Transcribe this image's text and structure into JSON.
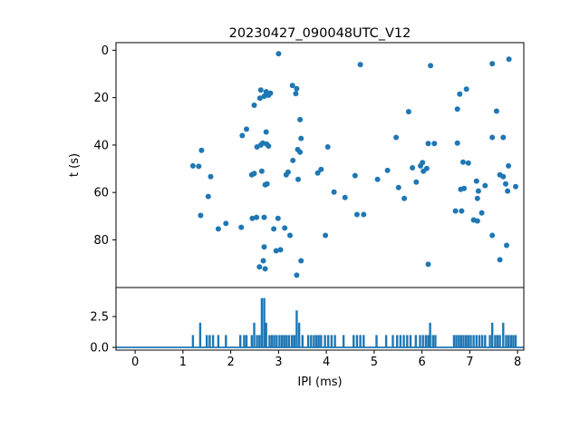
{
  "figure": {
    "title": "20230427_090048UTC_V12",
    "background": "#ffffff",
    "accent_color": "#1f77b4",
    "spine_color": "#000000"
  },
  "chart_data": [
    {
      "type": "scatter",
      "title": "20230427_090048UTC_V12",
      "xlabel": "",
      "ylabel": "t (s)",
      "xlim": [
        -0.4,
        8.13
      ],
      "ylim": [
        -3.2,
        100.1
      ],
      "y_inverted": true,
      "grid": false,
      "legend": "none",
      "yticks": [
        0,
        20,
        40,
        60,
        80
      ],
      "ytick_labels": [
        "0",
        "20",
        "40",
        "60",
        "80"
      ],
      "marker_color": "#1f77b4",
      "points": [
        [
          3.0,
          1.5
        ],
        [
          7.82,
          3.8
        ],
        [
          7.47,
          5.7
        ],
        [
          6.18,
          6.5
        ],
        [
          4.71,
          6.1
        ],
        [
          3.29,
          14.9
        ],
        [
          3.38,
          16.2
        ],
        [
          3.36,
          18.3
        ],
        [
          2.63,
          16.8
        ],
        [
          2.74,
          17.5
        ],
        [
          2.83,
          18.1
        ],
        [
          2.79,
          19.0
        ],
        [
          2.61,
          20.2
        ],
        [
          2.7,
          19.4
        ],
        [
          2.49,
          23.2
        ],
        [
          6.93,
          16.4
        ],
        [
          6.79,
          18.5
        ],
        [
          6.74,
          24.8
        ],
        [
          7.56,
          25.7
        ],
        [
          5.72,
          25.9
        ],
        [
          3.45,
          29.3
        ],
        [
          2.33,
          33.3
        ],
        [
          2.24,
          36.0
        ],
        [
          2.74,
          34.5
        ],
        [
          5.46,
          36.8
        ],
        [
          7.47,
          36.8
        ],
        [
          7.7,
          36.8
        ],
        [
          3.47,
          37.2
        ],
        [
          2.55,
          40.8
        ],
        [
          2.63,
          40.0
        ],
        [
          2.67,
          39.2
        ],
        [
          2.75,
          39.6
        ],
        [
          2.79,
          40.4
        ],
        [
          6.13,
          39.4
        ],
        [
          6.26,
          39.4
        ],
        [
          6.74,
          39.2
        ],
        [
          3.4,
          41.9
        ],
        [
          3.45,
          43.0
        ],
        [
          1.39,
          42.2
        ],
        [
          4.03,
          40.8
        ],
        [
          3.3,
          46.5
        ],
        [
          6.01,
          47.4
        ],
        [
          6.86,
          47.2
        ],
        [
          6.97,
          47.6
        ],
        [
          1.21,
          48.8
        ],
        [
          1.33,
          49.0
        ],
        [
          7.81,
          48.8
        ],
        [
          5.8,
          49.6
        ],
        [
          5.97,
          48.8
        ],
        [
          6.1,
          49.9
        ],
        [
          3.89,
          50.3
        ],
        [
          3.82,
          51.8
        ],
        [
          2.44,
          52.6
        ],
        [
          2.49,
          52.0
        ],
        [
          2.65,
          51.0
        ],
        [
          3.16,
          52.6
        ],
        [
          3.2,
          51.4
        ],
        [
          1.58,
          53.3
        ],
        [
          2.72,
          56.8
        ],
        [
          2.76,
          56.4
        ],
        [
          3.41,
          54.5
        ],
        [
          4.6,
          52.9
        ],
        [
          5.28,
          50.7
        ],
        [
          5.07,
          54.5
        ],
        [
          6.03,
          51.0
        ],
        [
          5.51,
          57.9
        ],
        [
          5.88,
          55.6
        ],
        [
          7.63,
          52.6
        ],
        [
          7.7,
          53.3
        ],
        [
          7.14,
          55.2
        ],
        [
          7.32,
          57.1
        ],
        [
          7.75,
          56.4
        ],
        [
          6.81,
          58.7
        ],
        [
          6.88,
          58.3
        ],
        [
          7.96,
          57.5
        ],
        [
          7.18,
          59.4
        ],
        [
          7.79,
          59.4
        ],
        [
          4.16,
          59.8
        ],
        [
          4.39,
          62.1
        ],
        [
          5.63,
          62.5
        ],
        [
          1.53,
          61.7
        ],
        [
          7.16,
          62.5
        ],
        [
          1.37,
          69.7
        ],
        [
          2.45,
          70.9
        ],
        [
          2.54,
          70.5
        ],
        [
          2.7,
          70.5
        ],
        [
          2.99,
          70.9
        ],
        [
          4.64,
          69.3
        ],
        [
          4.78,
          69.3
        ],
        [
          6.7,
          67.8
        ],
        [
          6.83,
          67.8
        ],
        [
          7.25,
          68.6
        ],
        [
          1.74,
          75.4
        ],
        [
          1.9,
          73.1
        ],
        [
          2.22,
          74.7
        ],
        [
          2.9,
          75.4
        ],
        [
          3.13,
          75.0
        ],
        [
          7.08,
          71.6
        ],
        [
          7.16,
          72.0
        ],
        [
          3.24,
          78.1
        ],
        [
          3.98,
          78.1
        ],
        [
          7.47,
          78.1
        ],
        [
          2.7,
          83.0
        ],
        [
          2.95,
          84.6
        ],
        [
          3.04,
          84.2
        ],
        [
          7.77,
          82.3
        ],
        [
          2.68,
          88.8
        ],
        [
          3.47,
          88.8
        ],
        [
          7.63,
          88.4
        ],
        [
          2.6,
          91.4
        ],
        [
          2.72,
          92.2
        ],
        [
          6.13,
          90.3
        ],
        [
          3.38,
          94.9
        ]
      ]
    },
    {
      "type": "bar",
      "title": "",
      "xlabel": "IPI (ms)",
      "ylabel": "",
      "xlim": [
        -0.4,
        8.13
      ],
      "ylim": [
        -0.22,
        4.85
      ],
      "grid": false,
      "legend": "none",
      "bar_color": "#1f77b4",
      "bar_width_ms": 0.045,
      "xticks": [
        0,
        1,
        2,
        3,
        4,
        5,
        6,
        7,
        8
      ],
      "xtick_labels": [
        "0",
        "1",
        "2",
        "3",
        "4",
        "5",
        "6",
        "7",
        "8"
      ],
      "yticks": [
        0.0,
        2.5
      ],
      "ytick_labels": [
        "0.0",
        "2.5"
      ],
      "bars": [
        [
          1.21,
          1
        ],
        [
          1.36,
          2
        ],
        [
          1.5,
          1
        ],
        [
          1.56,
          1
        ],
        [
          1.63,
          1
        ],
        [
          1.74,
          1
        ],
        [
          1.9,
          1
        ],
        [
          2.2,
          1
        ],
        [
          2.28,
          1
        ],
        [
          2.33,
          1
        ],
        [
          2.44,
          1
        ],
        [
          2.49,
          2
        ],
        [
          2.55,
          1
        ],
        [
          2.6,
          1
        ],
        [
          2.65,
          4
        ],
        [
          2.7,
          4
        ],
        [
          2.74,
          2
        ],
        [
          2.81,
          1
        ],
        [
          2.86,
          1
        ],
        [
          2.91,
          1
        ],
        [
          2.96,
          1
        ],
        [
          3.02,
          1
        ],
        [
          3.07,
          1
        ],
        [
          3.12,
          1
        ],
        [
          3.17,
          1
        ],
        [
          3.22,
          1
        ],
        [
          3.28,
          1
        ],
        [
          3.33,
          1
        ],
        [
          3.38,
          3
        ],
        [
          3.43,
          2
        ],
        [
          3.5,
          1
        ],
        [
          3.62,
          1
        ],
        [
          3.68,
          1
        ],
        [
          3.74,
          1
        ],
        [
          3.79,
          1
        ],
        [
          3.84,
          1
        ],
        [
          3.89,
          1
        ],
        [
          3.97,
          1
        ],
        [
          4.04,
          1
        ],
        [
          4.11,
          1
        ],
        [
          4.18,
          1
        ],
        [
          4.36,
          1
        ],
        [
          4.57,
          1
        ],
        [
          4.64,
          1
        ],
        [
          4.71,
          1
        ],
        [
          4.78,
          1
        ],
        [
          5.05,
          1
        ],
        [
          5.25,
          1
        ],
        [
          5.39,
          1
        ],
        [
          5.48,
          1
        ],
        [
          5.55,
          1
        ],
        [
          5.62,
          1
        ],
        [
          5.69,
          1
        ],
        [
          5.76,
          1
        ],
        [
          5.87,
          1
        ],
        [
          5.96,
          1
        ],
        [
          6.02,
          1
        ],
        [
          6.08,
          1
        ],
        [
          6.13,
          1
        ],
        [
          6.17,
          2
        ],
        [
          6.23,
          1
        ],
        [
          6.28,
          1
        ],
        [
          6.67,
          1
        ],
        [
          6.72,
          1
        ],
        [
          6.77,
          1
        ],
        [
          6.82,
          1
        ],
        [
          6.87,
          1
        ],
        [
          6.92,
          1
        ],
        [
          6.97,
          1
        ],
        [
          7.02,
          1
        ],
        [
          7.08,
          1
        ],
        [
          7.14,
          1
        ],
        [
          7.2,
          1
        ],
        [
          7.26,
          1
        ],
        [
          7.32,
          1
        ],
        [
          7.42,
          1
        ],
        [
          7.47,
          2
        ],
        [
          7.53,
          1
        ],
        [
          7.58,
          1
        ],
        [
          7.63,
          1
        ],
        [
          7.7,
          2
        ],
        [
          7.76,
          1
        ],
        [
          7.81,
          1
        ],
        [
          7.86,
          1
        ],
        [
          7.91,
          1
        ],
        [
          7.96,
          1
        ]
      ]
    }
  ]
}
